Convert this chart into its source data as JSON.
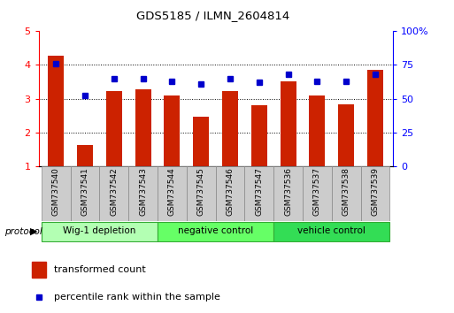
{
  "title": "GDS5185 / ILMN_2604814",
  "samples": [
    "GSM737540",
    "GSM737541",
    "GSM737542",
    "GSM737543",
    "GSM737544",
    "GSM737545",
    "GSM737546",
    "GSM737547",
    "GSM737536",
    "GSM737537",
    "GSM737538",
    "GSM737539"
  ],
  "transformed_count": [
    4.27,
    1.62,
    3.23,
    3.27,
    3.1,
    2.46,
    3.22,
    2.8,
    3.5,
    3.09,
    2.83,
    3.85
  ],
  "percentile_rank": [
    76,
    52,
    65,
    65,
    63,
    61,
    65,
    62,
    68,
    63,
    63,
    68
  ],
  "groups": [
    {
      "label": "Wig-1 depletion",
      "indices": [
        0,
        1,
        2,
        3
      ],
      "color": "#b3ffb3"
    },
    {
      "label": "negative control",
      "indices": [
        4,
        5,
        6,
        7
      ],
      "color": "#66ff66"
    },
    {
      "label": "vehicle control",
      "indices": [
        8,
        9,
        10,
        11
      ],
      "color": "#33dd55"
    }
  ],
  "bar_color": "#cc2200",
  "marker_color": "#0000cc",
  "ylim_left": [
    1,
    5
  ],
  "ylim_right": [
    0,
    100
  ],
  "yticks_left": [
    1,
    2,
    3,
    4,
    5
  ],
  "yticks_right": [
    0,
    25,
    50,
    75,
    100
  ],
  "yticklabels_right": [
    "0",
    "25",
    "50",
    "75",
    "100%"
  ],
  "grid_lines": [
    2,
    3,
    4
  ],
  "sample_bg": "#cccccc",
  "sample_border": "#888888",
  "protocol_label": "protocol",
  "legend_bar_label": "transformed count",
  "legend_marker_label": "percentile rank within the sample"
}
